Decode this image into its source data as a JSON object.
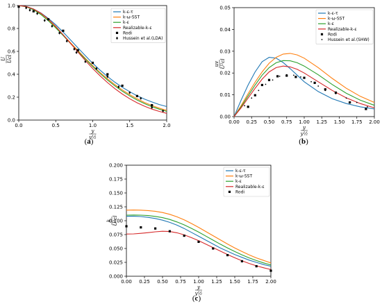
{
  "chart_data": [
    {
      "type": "line",
      "panel_label": "(a)",
      "panel_letter": "a",
      "xlabel_num": "y",
      "xlabel_den": "y½",
      "ylabel_num": "U",
      "ylabel_den": "Ucl",
      "xlim": [
        0,
        2.0
      ],
      "ylim": [
        0,
        1.0
      ],
      "xticks": [
        "0.0",
        "0.5",
        "1.0",
        "1.5",
        "2.0"
      ],
      "yticks": [
        "0.0",
        "0.2",
        "0.4",
        "0.6",
        "0.8",
        "1.0"
      ],
      "legend_position": "top-right",
      "series": [
        {
          "name": "k-ε-τ",
          "color": "#1f77b4",
          "x": [
            0,
            0.1,
            0.2,
            0.3,
            0.4,
            0.5,
            0.6,
            0.7,
            0.8,
            0.9,
            1.0,
            1.1,
            1.2,
            1.3,
            1.4,
            1.5,
            1.6,
            1.7,
            1.8,
            1.9,
            2.0
          ],
          "y": [
            1.0,
            0.992,
            0.97,
            0.935,
            0.888,
            0.832,
            0.768,
            0.7,
            0.63,
            0.562,
            0.496,
            0.435,
            0.38,
            0.33,
            0.286,
            0.247,
            0.212,
            0.183,
            0.158,
            0.136,
            0.118
          ]
        },
        {
          "name": "k-ω-SST",
          "color": "#ff7f0e",
          "x": [
            0,
            0.1,
            0.2,
            0.3,
            0.4,
            0.5,
            0.6,
            0.7,
            0.8,
            0.9,
            1.0,
            1.1,
            1.2,
            1.3,
            1.4,
            1.5,
            1.6,
            1.7,
            1.8,
            1.9,
            2.0
          ],
          "y": [
            1.0,
            0.99,
            0.964,
            0.924,
            0.871,
            0.81,
            0.744,
            0.676,
            0.607,
            0.539,
            0.476,
            0.415,
            0.36,
            0.309,
            0.263,
            0.222,
            0.186,
            0.154,
            0.127,
            0.104,
            0.085
          ]
        },
        {
          "name": "k-ε",
          "color": "#2ca02c",
          "x": [
            0,
            0.1,
            0.2,
            0.3,
            0.4,
            0.5,
            0.6,
            0.7,
            0.8,
            0.9,
            1.0,
            1.1,
            1.2,
            1.3,
            1.4,
            1.5,
            1.6,
            1.7,
            1.8,
            1.9,
            2.0
          ],
          "y": [
            1.0,
            0.99,
            0.963,
            0.921,
            0.867,
            0.805,
            0.739,
            0.669,
            0.6,
            0.532,
            0.467,
            0.406,
            0.35,
            0.298,
            0.252,
            0.211,
            0.175,
            0.144,
            0.117,
            0.095,
            0.076
          ]
        },
        {
          "name": "Realizable-k-ε",
          "color": "#d62728",
          "x": [
            0,
            0.1,
            0.2,
            0.3,
            0.4,
            0.5,
            0.6,
            0.7,
            0.8,
            0.9,
            1.0,
            1.1,
            1.2,
            1.3,
            1.4,
            1.5,
            1.6,
            1.7,
            1.8,
            1.9,
            2.0
          ],
          "y": [
            1.0,
            0.992,
            0.97,
            0.933,
            0.882,
            0.818,
            0.745,
            0.67,
            0.594,
            0.52,
            0.45,
            0.386,
            0.327,
            0.274,
            0.227,
            0.186,
            0.151,
            0.121,
            0.096,
            0.076,
            0.059
          ]
        }
      ],
      "markers": [
        {
          "name": "Rodi",
          "shape": "square",
          "x": [
            0.0,
            0.2,
            0.4,
            0.6,
            0.8,
            1.0,
            1.2,
            1.4,
            1.6,
            1.8
          ],
          "y": [
            0.99,
            0.95,
            0.88,
            0.78,
            0.61,
            0.5,
            0.4,
            0.3,
            0.21,
            0.13
          ]
        },
        {
          "name": "Hussein et al.(LDA)",
          "shape": "diamond",
          "x": [
            0.1,
            0.15,
            0.25,
            0.35,
            0.45,
            0.55,
            0.65,
            0.75,
            0.78,
            0.9,
            1.05,
            1.2,
            1.35,
            1.5,
            1.65,
            1.8,
            1.95
          ],
          "y": [
            0.98,
            0.96,
            0.93,
            0.87,
            0.82,
            0.76,
            0.69,
            0.62,
            0.59,
            0.51,
            0.45,
            0.38,
            0.29,
            0.24,
            0.19,
            0.11,
            0.08
          ]
        }
      ]
    },
    {
      "type": "line",
      "panel_label": "(b)",
      "panel_letter": "b",
      "xlabel_num": "y",
      "xlabel_den": "y½",
      "ylabel_num": "uv",
      "ylabel_den": "U²cl",
      "xlim": [
        0,
        2.0
      ],
      "ylim": [
        0,
        0.05
      ],
      "xticks": [
        "0.00",
        "0.25",
        "0.50",
        "0.75",
        "1.00",
        "1.25",
        "1.50",
        "1.75",
        "2.00"
      ],
      "yticks": [
        "0.00",
        "0.01",
        "0.02",
        "0.03",
        "0.04",
        "0.05"
      ],
      "legend_position": "top-right",
      "series": [
        {
          "name": "k-ε-τ",
          "color": "#1f77b4",
          "x": [
            0,
            0.1,
            0.2,
            0.3,
            0.4,
            0.5,
            0.6,
            0.7,
            0.8,
            0.9,
            1.0,
            1.2,
            1.4,
            1.6,
            1.8,
            2.0
          ],
          "y": [
            0,
            0.0075,
            0.0145,
            0.0205,
            0.0252,
            0.0272,
            0.0268,
            0.0248,
            0.022,
            0.019,
            0.016,
            0.0115,
            0.0082,
            0.006,
            0.0045,
            0.0035
          ]
        },
        {
          "name": "k-ω-SST",
          "color": "#ff7f0e",
          "x": [
            0,
            0.1,
            0.2,
            0.3,
            0.4,
            0.5,
            0.6,
            0.7,
            0.8,
            0.9,
            1.0,
            1.2,
            1.4,
            1.6,
            1.8,
            2.0
          ],
          "y": [
            0,
            0.005,
            0.0105,
            0.0158,
            0.0205,
            0.0245,
            0.0272,
            0.0287,
            0.029,
            0.0283,
            0.0268,
            0.0225,
            0.0175,
            0.013,
            0.0093,
            0.0065
          ]
        },
        {
          "name": "k-ε",
          "color": "#2ca02c",
          "x": [
            0,
            0.1,
            0.2,
            0.3,
            0.4,
            0.5,
            0.6,
            0.7,
            0.8,
            0.9,
            1.0,
            1.2,
            1.4,
            1.6,
            1.8,
            2.0
          ],
          "y": [
            0,
            0.0045,
            0.0095,
            0.0145,
            0.019,
            0.0225,
            0.0247,
            0.0257,
            0.0256,
            0.0247,
            0.0232,
            0.0192,
            0.0147,
            0.0107,
            0.0075,
            0.0052
          ]
        },
        {
          "name": "Realizable-k-ε",
          "color": "#d62728",
          "x": [
            0,
            0.1,
            0.2,
            0.3,
            0.4,
            0.5,
            0.6,
            0.7,
            0.8,
            0.9,
            1.0,
            1.2,
            1.4,
            1.6,
            1.8,
            2.0
          ],
          "y": [
            0,
            0.004,
            0.0085,
            0.013,
            0.0172,
            0.0205,
            0.0225,
            0.0232,
            0.0228,
            0.0217,
            0.02,
            0.016,
            0.012,
            0.0086,
            0.006,
            0.004
          ]
        }
      ],
      "markers": [
        {
          "name": "Rodi",
          "shape": "square",
          "x": [
            0.2,
            0.3,
            0.4,
            0.5,
            0.62,
            0.75,
            0.88,
            1.0,
            1.15,
            1.3,
            1.45,
            1.65,
            1.88
          ],
          "y": [
            0.0045,
            0.0098,
            0.0145,
            0.0168,
            0.0185,
            0.0188,
            0.0182,
            0.0178,
            0.0155,
            0.0125,
            0.011,
            0.0065,
            0.0035
          ]
        },
        {
          "name": "Hussein et al.(SHW)",
          "shape": "dot",
          "x": [
            0.15,
            0.25,
            0.35,
            0.45,
            0.55,
            0.65,
            0.75,
            0.85,
            0.95,
            1.1,
            1.2,
            1.3,
            1.45,
            1.6,
            1.75,
            1.9
          ],
          "y": [
            0.005,
            0.0085,
            0.012,
            0.0148,
            0.0168,
            0.0185,
            0.0192,
            0.019,
            0.0182,
            0.016,
            0.014,
            0.012,
            0.0105,
            0.0085,
            0.0065,
            0.0045
          ]
        }
      ]
    },
    {
      "type": "line",
      "panel_label": "(c)",
      "panel_letter": "c",
      "xlabel_num": "y",
      "xlabel_den": "y½",
      "ylabel_num": "k",
      "ylabel_den": "U²cl",
      "xlim": [
        0,
        2.0
      ],
      "ylim": [
        0,
        0.2
      ],
      "xticks": [
        "0.00",
        "0.25",
        "0.50",
        "0.75",
        "1.00",
        "1.25",
        "1.50",
        "1.75",
        "2.00"
      ],
      "yticks": [
        "0.000",
        "0.025",
        "0.050",
        "0.075",
        "0.100",
        "0.125",
        "0.150",
        "0.175",
        "0.200"
      ],
      "legend_position": "top-right",
      "series": [
        {
          "name": "k-ε-τ",
          "color": "#1f77b4",
          "x": [
            0,
            0.1,
            0.2,
            0.3,
            0.4,
            0.5,
            0.6,
            0.7,
            0.8,
            0.9,
            1.0,
            1.1,
            1.2,
            1.3,
            1.4,
            1.5,
            1.6,
            1.7,
            1.8,
            1.9,
            2.0
          ],
          "y": [
            0.108,
            0.108,
            0.1075,
            0.106,
            0.104,
            0.101,
            0.097,
            0.092,
            0.086,
            0.079,
            0.072,
            0.065,
            0.058,
            0.051,
            0.045,
            0.039,
            0.034,
            0.029,
            0.025,
            0.021,
            0.018
          ]
        },
        {
          "name": "k-ω-SST",
          "color": "#ff7f0e",
          "x": [
            0,
            0.1,
            0.2,
            0.3,
            0.4,
            0.5,
            0.6,
            0.7,
            0.8,
            0.9,
            1.0,
            1.1,
            1.2,
            1.3,
            1.4,
            1.5,
            1.6,
            1.7,
            1.8,
            1.9,
            2.0
          ],
          "y": [
            0.119,
            0.1192,
            0.119,
            0.1183,
            0.117,
            0.1148,
            0.1115,
            0.107,
            0.1015,
            0.095,
            0.088,
            0.0805,
            0.073,
            0.0655,
            0.058,
            0.051,
            0.0445,
            0.0385,
            0.033,
            0.0285,
            0.024
          ]
        },
        {
          "name": "k-ε",
          "color": "#2ca02c",
          "x": [
            0,
            0.1,
            0.2,
            0.3,
            0.4,
            0.5,
            0.6,
            0.7,
            0.8,
            0.9,
            1.0,
            1.1,
            1.2,
            1.3,
            1.4,
            1.5,
            1.6,
            1.7,
            1.8,
            1.9,
            2.0
          ],
          "y": [
            0.11,
            0.1102,
            0.11,
            0.1092,
            0.1078,
            0.1055,
            0.1022,
            0.0978,
            0.0925,
            0.0862,
            0.0795,
            0.0722,
            0.065,
            0.0578,
            0.051,
            0.0445,
            0.0385,
            0.033,
            0.0282,
            0.024,
            0.0202
          ]
        },
        {
          "name": "Realizable-k-ε",
          "color": "#d62728",
          "x": [
            0,
            0.1,
            0.2,
            0.3,
            0.4,
            0.5,
            0.6,
            0.7,
            0.8,
            0.9,
            1.0,
            1.1,
            1.2,
            1.3,
            1.4,
            1.5,
            1.6,
            1.7,
            1.8,
            1.9,
            2.0
          ],
          "y": [
            0.076,
            0.0762,
            0.0772,
            0.0785,
            0.08,
            0.081,
            0.0805,
            0.0782,
            0.0745,
            0.0695,
            0.064,
            0.0578,
            0.0515,
            0.0452,
            0.039,
            0.0332,
            0.0278,
            0.023,
            0.0188,
            0.0152,
            0.012
          ]
        }
      ],
      "markers": [
        {
          "name": "Rodi",
          "shape": "square",
          "x": [
            0.0,
            0.2,
            0.4,
            0.6,
            0.8,
            1.0,
            1.2,
            1.4,
            1.6,
            1.8,
            2.0
          ],
          "y": [
            0.09,
            0.088,
            0.086,
            0.081,
            0.073,
            0.062,
            0.05,
            0.038,
            0.027,
            0.018,
            0.01
          ]
        }
      ]
    }
  ]
}
